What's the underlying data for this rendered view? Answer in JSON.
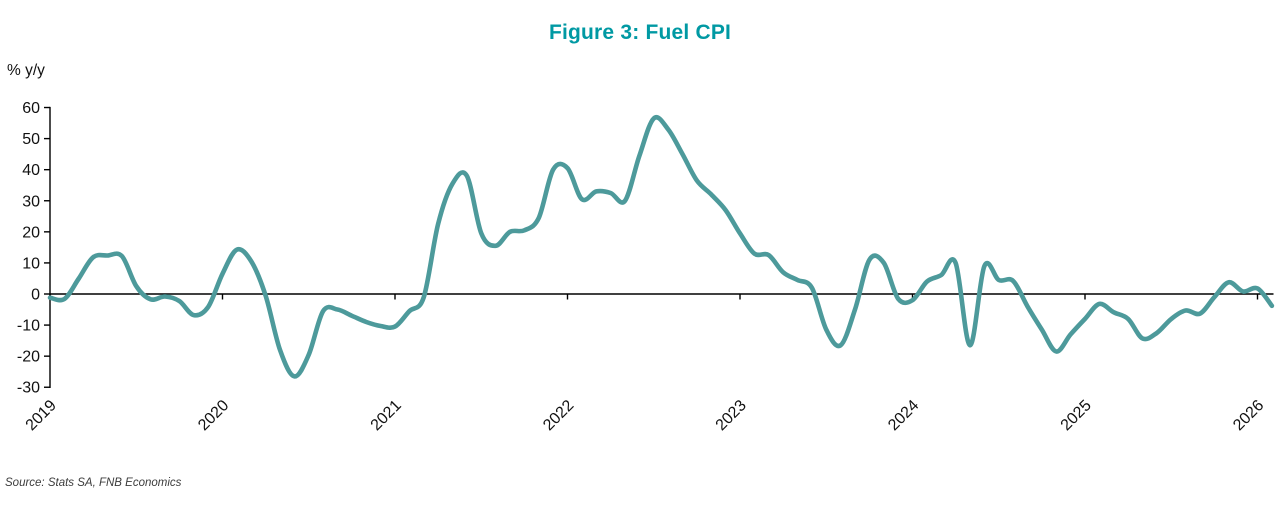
{
  "title": "Figure 3: Fuel CPI",
  "source": "Source: Stats SA, FNB Economics",
  "colors": {
    "title": "#0099a3",
    "line": "#4d9a9b",
    "axis": "#000000",
    "tick_text": "#111111",
    "source_text": "#3c3c3c"
  },
  "chart_data": {
    "type": "line",
    "title": "Figure 3: Fuel CPI",
    "xlabel": "",
    "ylabel": "% y/y",
    "ylim": [
      -30,
      60
    ],
    "yticks": [
      60,
      50,
      40,
      30,
      20,
      10,
      0,
      -10,
      -20,
      -30
    ],
    "x_tick_years": [
      "2019",
      "2020",
      "2021",
      "2022",
      "2023",
      "2024",
      "2025",
      "2026"
    ],
    "x_frequency": "monthly",
    "x_start": "2019-01",
    "x_end": "2026-02",
    "grid": false,
    "legend": "none",
    "axis_style": "x-axis drawn at zero line, year ticks on zero line, labels rotated 45deg below plot",
    "series": [
      {
        "name": "Fuel CPI",
        "color": "#4d9a9b",
        "values": [
          -1.2,
          -1.6,
          5.0,
          11.8,
          12.4,
          12.2,
          2.5,
          -1.7,
          -0.8,
          -2.3,
          -6.8,
          -4.2,
          6.5,
          14.3,
          10.5,
          -0.5,
          -18.0,
          -26.5,
          -19.5,
          -5.5,
          -5.0,
          -7.0,
          -9.0,
          -10.3,
          -10.5,
          -5.5,
          -1.0,
          22.5,
          35.5,
          38.0,
          19.5,
          15.5,
          20.0,
          20.5,
          24.5,
          40.0,
          40.5,
          30.5,
          33.0,
          32.5,
          30.0,
          44.5,
          56.5,
          53.0,
          45.0,
          36.5,
          32.0,
          27.0,
          19.5,
          13.0,
          12.5,
          7.0,
          4.5,
          2.0,
          -11.5,
          -16.5,
          -5.0,
          11.0,
          10.0,
          -1.5,
          -2.0,
          4.0,
          6.1,
          10.0,
          -16.5,
          9.0,
          4.5,
          4.2,
          -4.0,
          -11.5,
          -18.5,
          -13.0,
          -8.0,
          -3.2,
          -5.9,
          -8.0,
          -14.3,
          -12.5,
          -8.0,
          -5.3,
          -6.3,
          -1.0,
          3.8,
          0.8,
          1.8,
          -3.8
        ]
      }
    ]
  }
}
